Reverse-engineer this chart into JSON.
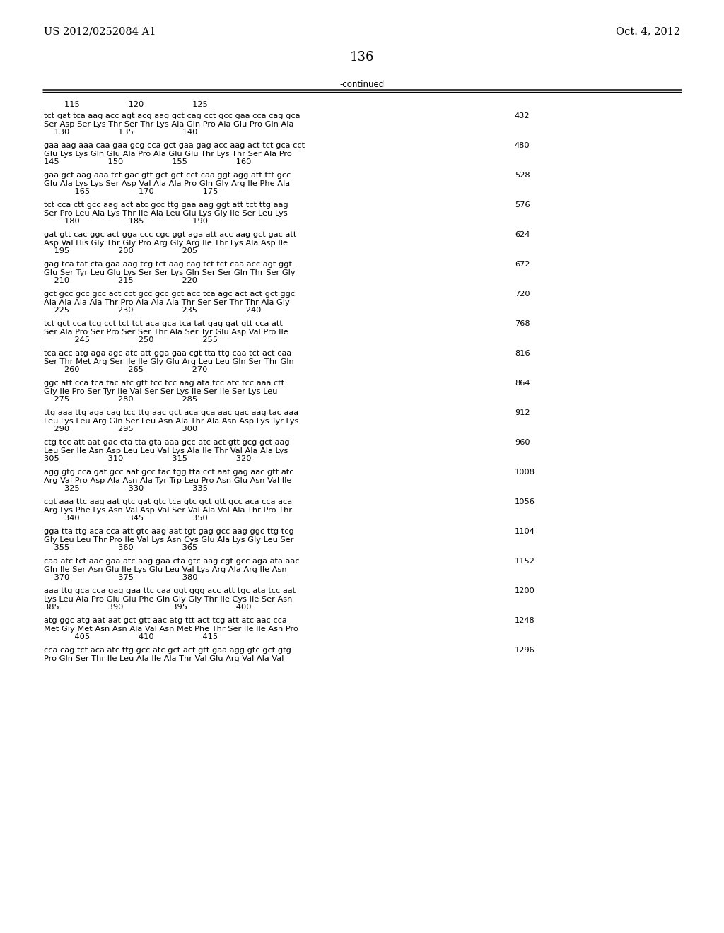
{
  "header_left": "US 2012/0252084 A1",
  "header_right": "Oct. 4, 2012",
  "page_number": "136",
  "continued_label": "-continued",
  "background_color": "#ffffff",
  "text_color": "#000000",
  "sequence_blocks": [
    {
      "ruler_top": "        115                   120                   125",
      "dna": "tct gat tca aag acc agt acg aag gct cag cct gcc gaa cca cag gca",
      "aa": "Ser Asp Ser Lys Thr Ser Thr Lys Ala Gln Pro Ala Glu Pro Gln Ala",
      "pos": "    130                   135                   140",
      "num": "432"
    },
    {
      "ruler_top": "",
      "dna": "gaa aag aaa caa gaa gcg cca gct gaa gag acc aag act tct gca cct",
      "aa": "Glu Lys Lys Gln Glu Ala Pro Ala Glu Glu Thr Lys Thr Ser Ala Pro",
      "pos": "145                   150                   155                   160",
      "num": "480"
    },
    {
      "ruler_top": "",
      "dna": "gaa gct aag aaa tct gac gtt gct gct cct caa ggt agg att ttt gcc",
      "aa": "Glu Ala Lys Lys Ser Asp Val Ala Ala Pro Gln Gly Arg Ile Phe Ala",
      "pos": "            165                   170                   175",
      "num": "528"
    },
    {
      "ruler_top": "",
      "dna": "tct cca ctt gcc aag act atc gcc ttg gaa aag ggt att tct ttg aag",
      "aa": "Ser Pro Leu Ala Lys Thr Ile Ala Leu Glu Lys Gly Ile Ser Leu Lys",
      "pos": "        180                   185                   190",
      "num": "576"
    },
    {
      "ruler_top": "",
      "dna": "gat gtt cac ggc act gga ccc cgc ggt aga att acc aag gct gac att",
      "aa": "Asp Val His Gly Thr Gly Pro Arg Gly Arg Ile Thr Lys Ala Asp Ile",
      "pos": "    195                   200                   205",
      "num": "624"
    },
    {
      "ruler_top": "",
      "dna": "gag tca tat cta gaa aag tcg tct aag cag tct tct caa acc agt ggt",
      "aa": "Glu Ser Tyr Leu Glu Lys Ser Ser Lys Gln Ser Ser Gln Thr Ser Gly",
      "pos": "    210                   215                   220",
      "num": "672"
    },
    {
      "ruler_top": "",
      "dna": "gct gcc gcc gcc act cct gcc gcc gct acc tca agc act act gct ggc",
      "aa": "Ala Ala Ala Ala Thr Pro Ala Ala Ala Thr Ser Ser Thr Thr Ala Gly",
      "pos": "    225                   230                   235                   240",
      "num": "720"
    },
    {
      "ruler_top": "",
      "dna": "tct gct cca tcg cct tct tct aca gca tca tat gag gat gtt cca att",
      "aa": "Ser Ala Pro Ser Pro Ser Ser Thr Ala Ser Tyr Glu Asp Val Pro Ile",
      "pos": "            245                   250                   255",
      "num": "768"
    },
    {
      "ruler_top": "",
      "dna": "tca acc atg aga agc atc att gga gaa cgt tta ttg caa tct act caa",
      "aa": "Ser Thr Met Arg Ser Ile Ile Gly Glu Arg Leu Leu Gln Ser Thr Gln",
      "pos": "        260                   265                   270",
      "num": "816"
    },
    {
      "ruler_top": "",
      "dna": "ggc att cca tca tac atc gtt tcc tcc aag ata tcc atc tcc aaa ctt",
      "aa": "Gly Ile Pro Ser Tyr Ile Val Ser Ser Lys Ile Ser Ile Ser Lys Leu",
      "pos": "    275                   280                   285",
      "num": "864"
    },
    {
      "ruler_top": "",
      "dna": "ttg aaa ttg aga cag tcc ttg aac gct aca gca aac gac aag tac aaa",
      "aa": "Leu Lys Leu Arg Gln Ser Leu Asn Ala Thr Ala Asn Asp Lys Tyr Lys",
      "pos": "    290                   295                   300",
      "num": "912"
    },
    {
      "ruler_top": "",
      "dna": "ctg tcc att aat gac cta tta gta aaa gcc atc act gtt gcg gct aag",
      "aa": "Leu Ser Ile Asn Asp Leu Leu Val Lys Ala Ile Thr Val Ala Ala Lys",
      "pos": "305                   310                   315                   320",
      "num": "960"
    },
    {
      "ruler_top": "",
      "dna": "agg gtg cca gat gcc aat gcc tac tgg tta cct aat gag aac gtt atc",
      "aa": "Arg Val Pro Asp Ala Asn Ala Tyr Trp Leu Pro Asn Glu Asn Val Ile",
      "pos": "        325                   330                   335",
      "num": "1008"
    },
    {
      "ruler_top": "",
      "dna": "cgt aaa ttc aag aat gtc gat gtc tca gtc gct gtt gcc aca cca aca",
      "aa": "Arg Lys Phe Lys Asn Val Asp Val Ser Val Ala Val Ala Thr Pro Thr",
      "pos": "        340                   345                   350",
      "num": "1056"
    },
    {
      "ruler_top": "",
      "dna": "gga tta ttg aca cca att gtc aag aat tgt gag gcc aag ggc ttg tcg",
      "aa": "Gly Leu Leu Thr Pro Ile Val Lys Asn Cys Glu Ala Lys Gly Leu Ser",
      "pos": "    355                   360                   365",
      "num": "1104"
    },
    {
      "ruler_top": "",
      "dna": "caa atc tct aac gaa atc aag gaa cta gtc aag cgt gcc aga ata aac",
      "aa": "Gln Ile Ser Asn Glu Ile Lys Glu Leu Val Lys Arg Ala Arg Ile Asn",
      "pos": "    370                   375                   380",
      "num": "1152"
    },
    {
      "ruler_top": "",
      "dna": "aaa ttg gca cca gag gaa ttc caa ggt ggg acc att tgc ata tcc aat",
      "aa": "Lys Leu Ala Pro Glu Glu Phe Gln Gly Gly Thr Ile Cys Ile Ser Asn",
      "pos": "385                   390                   395                   400",
      "num": "1200"
    },
    {
      "ruler_top": "",
      "dna": "atg ggc atg aat aat gct gtt aac atg ttt act tcg att atc aac cca",
      "aa": "Met Gly Met Asn Asn Ala Val Asn Met Phe Thr Ser Ile Ile Asn Pro",
      "pos": "            405                   410                   415",
      "num": "1248"
    },
    {
      "ruler_top": "",
      "dna": "cca cag tct aca atc ttg gcc atc gct act gtt gaa agg gtc gct gtg",
      "aa": "Pro Gln Ser Thr Ile Leu Ala Ile Ala Thr Val Glu Arg Val Ala Val",
      "pos": "",
      "num": "1296"
    }
  ]
}
